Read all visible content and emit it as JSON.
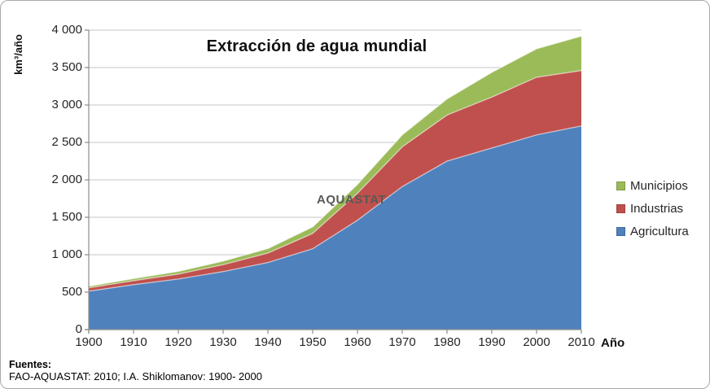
{
  "title": "Extracción de agua mundial",
  "watermark": "AQUASTAT",
  "y_axis": {
    "label": "km³/año",
    "ticks": [
      {
        "label": "0",
        "value": 0
      },
      {
        "label": "500",
        "value": 500
      },
      {
        "label": "1 000",
        "value": 1000
      },
      {
        "label": "1 500",
        "value": 1500
      },
      {
        "label": "2 000",
        "value": 2000
      },
      {
        "label": "2 500",
        "value": 2500
      },
      {
        "label": "3 000",
        "value": 3000
      },
      {
        "label": "3 500",
        "value": 3500
      },
      {
        "label": "4 000",
        "value": 4000
      }
    ]
  },
  "x_axis": {
    "label": "Año",
    "years": [
      1900,
      1910,
      1920,
      1930,
      1940,
      1950,
      1960,
      1970,
      1980,
      1990,
      2000,
      2010
    ]
  },
  "legend": [
    {
      "label": "Municipios",
      "color": "#9bbb59"
    },
    {
      "label": "Industrias",
      "color": "#c0504d"
    },
    {
      "label": "Agricultura",
      "color": "#4f81bd"
    }
  ],
  "footer": {
    "heading": "Fuentes:",
    "text": "FAO-AQUASTAT: 2010; I.A. Shiklomanov: 1900- 2000"
  },
  "colors": {
    "gridline": "#c6c6c6",
    "axis": "#8c8c8c",
    "watermark": "#595959"
  },
  "chart_data": {
    "type": "area",
    "stacked": true,
    "title": "Extracción de agua mundial",
    "xlabel": "Año",
    "ylabel": "km³/año",
    "ylim": [
      0,
      4000
    ],
    "grid": true,
    "legend_position": "right",
    "x": [
      1900,
      1910,
      1920,
      1930,
      1940,
      1950,
      1960,
      1970,
      1980,
      1990,
      2000,
      2010
    ],
    "series": [
      {
        "name": "Agricultura",
        "color": "#4f81bd",
        "values": [
          513,
          600,
          675,
          775,
          895,
          1080,
          1460,
          1910,
          2250,
          2425,
          2600,
          2720
        ]
      },
      {
        "name": "Industrias",
        "color": "#c0504d",
        "values": [
          44,
          53,
          66,
          92,
          127,
          204,
          360,
          530,
          615,
          680,
          770,
          740
        ]
      },
      {
        "name": "Municipios",
        "color": "#9bbb59",
        "values": [
          22,
          28,
          36,
          47,
          59,
          87,
          118,
          160,
          215,
          330,
          380,
          460
        ]
      }
    ]
  }
}
